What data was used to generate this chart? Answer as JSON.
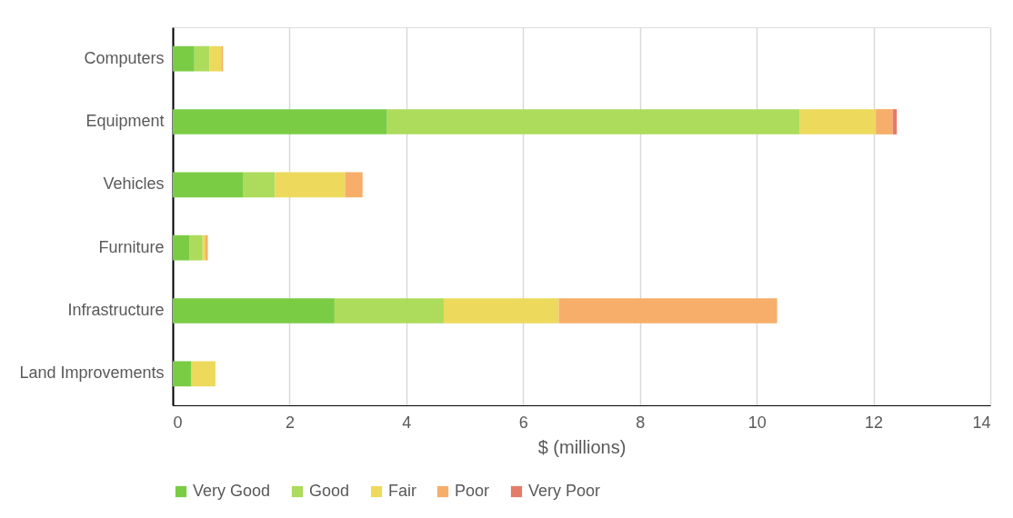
{
  "chart_data": {
    "type": "bar",
    "orientation": "horizontal",
    "stacked": true,
    "categories": [
      "Computers",
      "Equipment",
      "Vehicles",
      "Furniture",
      "Infrastructure",
      "Land Improvements"
    ],
    "series": [
      {
        "name": "Very Good",
        "color": "#7acc44",
        "values": [
          0.37,
          3.67,
          1.21,
          0.29,
          2.77,
          0.32
        ]
      },
      {
        "name": "Good",
        "color": "#addb5b",
        "values": [
          0.26,
          7.07,
          0.54,
          0.22,
          1.87,
          0
        ]
      },
      {
        "name": "Fair",
        "color": "#edd95c",
        "values": [
          0.2,
          1.3,
          1.2,
          0.05,
          1.97,
          0.41
        ]
      },
      {
        "name": "Poor",
        "color": "#f6ae6a",
        "values": [
          0.03,
          0.29,
          0.3,
          0.04,
          3.74,
          0
        ]
      },
      {
        "name": "Very Poor",
        "color": "#e47c6a",
        "values": [
          0,
          0.07,
          0,
          0,
          0,
          0
        ]
      }
    ],
    "xlabel": "$ (millions)",
    "xlim": [
      0,
      14
    ],
    "xticks": [
      0,
      2,
      4,
      6,
      8,
      10,
      12,
      14
    ],
    "grid": "x",
    "legend": "bottom"
  }
}
